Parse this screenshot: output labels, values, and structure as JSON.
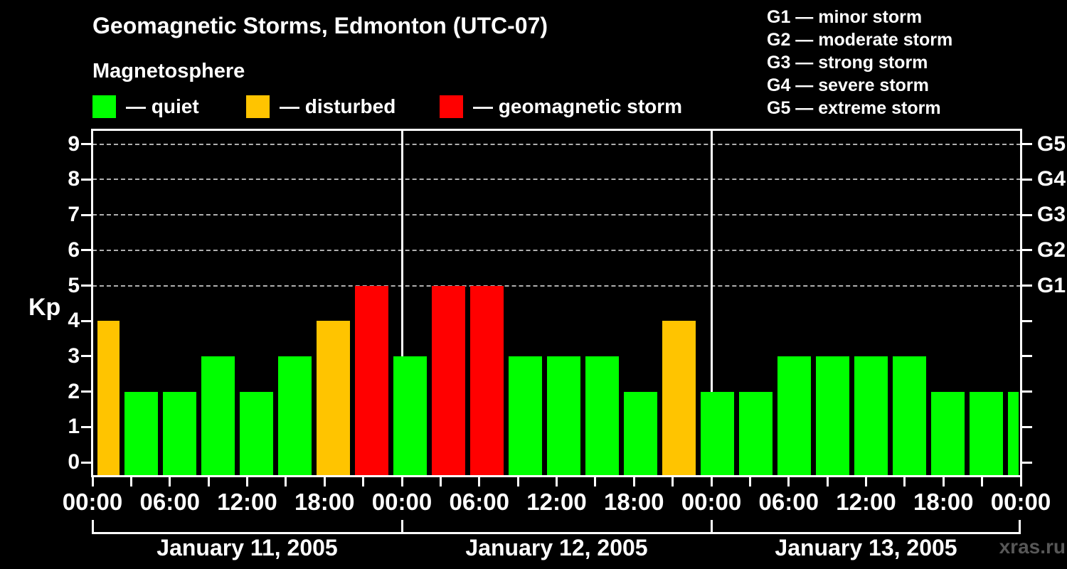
{
  "title": "Geomagnetic Storms, Edmonton (UTC-07)",
  "subtitle": "Magnetosphere",
  "condition_legend": [
    {
      "name": "quiet",
      "label": "— quiet",
      "color": "#00ff00"
    },
    {
      "name": "disturbed",
      "label": "— disturbed",
      "color": "#ffc400"
    },
    {
      "name": "storm",
      "label": "— geomagnetic storm",
      "color": "#ff0000"
    }
  ],
  "storm_scale_legend": [
    "G1 — minor storm",
    "G2 — moderate storm",
    "G3 — strong storm",
    "G4 — severe storm",
    "G5 — extreme storm"
  ],
  "watermark": "xras.ru",
  "chart_data": {
    "type": "bar",
    "title": "Geomagnetic Storms, Edmonton (UTC-07)",
    "ylabel": "Kp",
    "ylim": [
      0,
      9
    ],
    "yticks": [
      0,
      1,
      2,
      3,
      4,
      5,
      6,
      7,
      8,
      9
    ],
    "gridlines_kp": [
      5,
      6,
      7,
      8,
      9
    ],
    "grid": "dashed horizontal at Kp 5-9",
    "right_axis_ticks": [
      {
        "label": "G1",
        "kp": 5
      },
      {
        "label": "G2",
        "kp": 6
      },
      {
        "label": "G3",
        "kp": 7
      },
      {
        "label": "G4",
        "kp": 8
      },
      {
        "label": "G5",
        "kp": 9
      }
    ],
    "x_interval_hours": 3,
    "x_tick_labels": [
      "00:00",
      "06:00",
      "12:00",
      "18:00",
      "00:00",
      "06:00",
      "12:00",
      "18:00",
      "00:00",
      "06:00",
      "12:00",
      "18:00",
      "00:00"
    ],
    "days": [
      {
        "date": "January 11, 2005",
        "kp": [
          4,
          2,
          2,
          3,
          2,
          3,
          4,
          5
        ]
      },
      {
        "date": "January 12, 2005",
        "kp": [
          3,
          5,
          5,
          3,
          3,
          3,
          2,
          4
        ]
      },
      {
        "date": "January 13, 2005",
        "kp": [
          2,
          2,
          3,
          3,
          3,
          3,
          2,
          2
        ]
      }
    ],
    "partial_next_interval_kp": 2,
    "color_coding": {
      "quiet": "Kp <= 3",
      "disturbed": "Kp == 4",
      "storm": "Kp >= 5"
    },
    "colors": {
      "background": "#000000",
      "axis": "#ffffff",
      "gridline": "#b0b0b0",
      "watermark_text": "#575757"
    }
  }
}
